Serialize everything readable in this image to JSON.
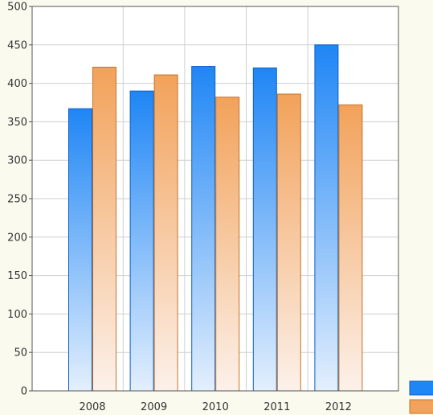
{
  "chart_data": {
    "type": "bar",
    "categories": [
      "2008",
      "2009",
      "2010",
      "2011",
      "2012"
    ],
    "series": [
      {
        "values": [
          367,
          390,
          422,
          420,
          450
        ],
        "color": "#1f86f5"
      },
      {
        "values": [
          421,
          411,
          382,
          386,
          372
        ],
        "color": "#f2a25a"
      }
    ],
    "ylim": [
      0,
      500
    ],
    "yticks": [
      0,
      50,
      100,
      150,
      200,
      250,
      300,
      350,
      400,
      450,
      500
    ],
    "grid": true,
    "legend": "bottom-right"
  }
}
